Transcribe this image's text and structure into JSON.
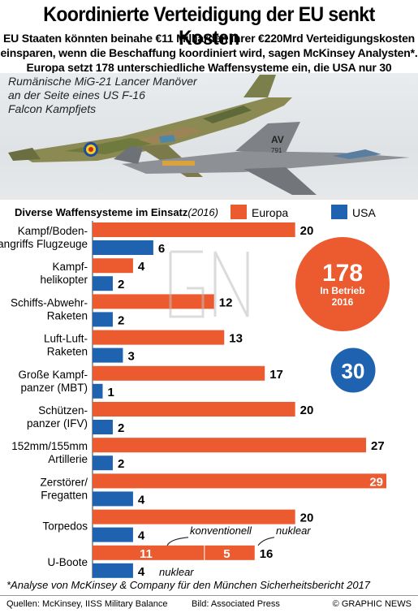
{
  "header": {
    "title": "Koordinierte Verteidigung der EU senkt Kosten",
    "deck_lines": [
      "EU Staaten könnten beinahe €11 Milliarden ihrer €220Mrd Verteidigungskosten",
      "einsparen, wenn die Beschaffung koordiniert wird, sagen McKinsey Analysten*.",
      "Europa setzt 178 unterschiedliche Waffensysteme ein, die USA nur 30"
    ]
  },
  "photo": {
    "caption_lines": [
      "Rumänische MiG-21 Lancer Manöver",
      "an der Seite eines US F-16",
      "Falcon Kampfjets"
    ],
    "tail_code": "AV",
    "tail_number": "791"
  },
  "legend": {
    "title": "Diverse Waffensysteme im Einsatz",
    "year": "(2016)",
    "europe_label": "Europa",
    "usa_label": "USA"
  },
  "colors": {
    "europe": "#ec5a2f",
    "usa": "#1f63b0",
    "total_europe_circle": "#ec5a2f",
    "total_usa_circle": "#1f63b0"
  },
  "totals": {
    "europe_value": "178",
    "europe_caption_lines": [
      "In Betrieb",
      "2016"
    ],
    "usa_value": "30"
  },
  "chart_data": {
    "type": "bar",
    "orientation": "horizontal",
    "categories": [
      [
        "Kampf/Boden-",
        "angriffs Flugzeuge"
      ],
      [
        "Kampf-",
        "helikopter"
      ],
      [
        "Schiffs-Abwehr-",
        "Raketen"
      ],
      [
        "Luft-Luft-",
        "Raketen"
      ],
      [
        "Große Kampf-",
        "panzer (MBT)"
      ],
      [
        "Schützen-",
        "panzer (IFV)"
      ],
      [
        "152mm/155mm",
        "Artillerie"
      ],
      [
        "Zerstörer/",
        "Fregatten"
      ],
      [
        "Torpedos"
      ],
      [
        "U-Boote"
      ]
    ],
    "series": [
      {
        "name": "Europa",
        "values": [
          20,
          4,
          12,
          13,
          17,
          20,
          27,
          29,
          20,
          16
        ]
      },
      {
        "name": "USA",
        "values": [
          6,
          2,
          2,
          3,
          1,
          2,
          2,
          4,
          4,
          4
        ]
      }
    ],
    "submarine_breakdown": {
      "europe_conventional": 11,
      "europe_nuclear": 5,
      "label_conventional": "konventionell",
      "label_nuclear": "nuklear",
      "label_usa_nuclear": "nuklear"
    },
    "xlim": [
      0,
      29
    ]
  },
  "footnote": "*Analyse von McKinsey & Company für den München Sicherheitsbericht 2017",
  "footer": {
    "sources": "Quellen: McKinsey, IISS Military Balance",
    "picture": "Bild: Associated Press",
    "credit": "© GRAPHIC NEWS"
  }
}
